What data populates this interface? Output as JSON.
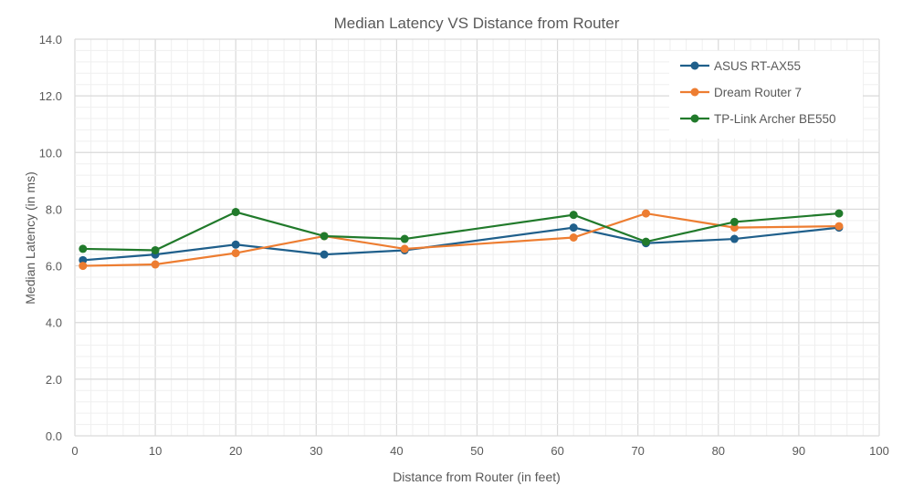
{
  "chart_data": {
    "type": "line",
    "title": "Median Latency VS Distance from Router",
    "xlabel": "Distance from Router (in feet)",
    "ylabel": "Median Latency (in ms)",
    "xlim": [
      0,
      100
    ],
    "ylim": [
      0,
      14
    ],
    "xticks": [
      0,
      10,
      20,
      30,
      40,
      50,
      60,
      70,
      80,
      90,
      100
    ],
    "yticks": [
      "0.0",
      "2.0",
      "4.0",
      "6.0",
      "8.0",
      "10.0",
      "12.0",
      "14.0"
    ],
    "grid": true,
    "legend_position": "top-right",
    "x": [
      1,
      10,
      20,
      31,
      41,
      62,
      71,
      82,
      95
    ],
    "series": [
      {
        "name": "ASUS RT-AX55",
        "color": "#1f5f8b",
        "values": [
          6.2,
          6.4,
          6.75,
          6.4,
          6.55,
          7.35,
          6.8,
          6.95,
          7.35
        ]
      },
      {
        "name": "Dream Router 7",
        "color": "#ed7d31",
        "values": [
          6.0,
          6.05,
          6.45,
          7.05,
          6.6,
          7.0,
          7.85,
          7.35,
          7.4
        ]
      },
      {
        "name": "TP-Link Archer BE550",
        "color": "#217a2b",
        "values": [
          6.6,
          6.55,
          7.9,
          7.05,
          6.95,
          7.8,
          6.85,
          7.55,
          7.85
        ]
      }
    ]
  }
}
